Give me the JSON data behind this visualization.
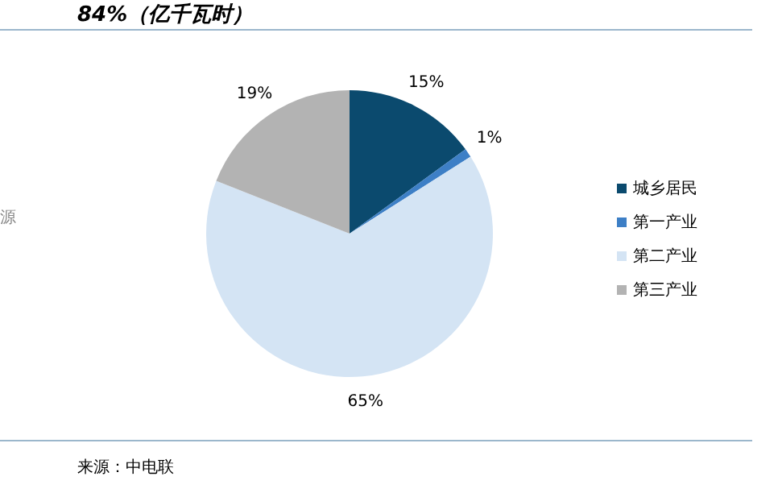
{
  "chart_data": {
    "type": "pie",
    "title": "84%（亿千瓦时）",
    "categories": [
      "城乡居民",
      "第一产业",
      "第二产业",
      "第三产业"
    ],
    "values": [
      15,
      1,
      65,
      19
    ],
    "colors": [
      "#0b4a6e",
      "#3d7fc6",
      "#d4e4f4",
      "#b3b3b3"
    ],
    "value_labels": [
      "15%",
      "1%",
      "65%",
      "19%"
    ],
    "legend": "right",
    "annotations": [
      "源",
      "来源：中电联"
    ]
  }
}
